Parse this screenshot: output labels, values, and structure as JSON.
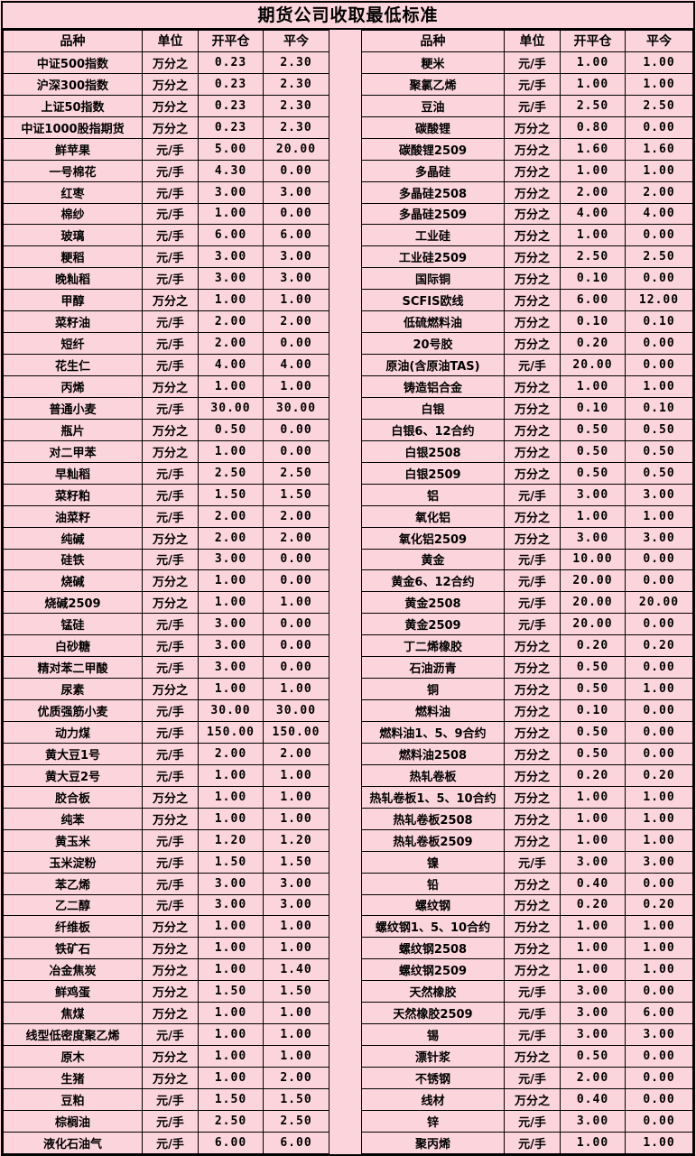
{
  "page": {
    "title": "期货公司收取最低标准",
    "background_color": "#fcd5dc",
    "border_color": "#000000",
    "text_color": "#000000"
  },
  "columns": [
    "品种",
    "单位",
    "开平仓",
    "平今"
  ],
  "tables": [
    {
      "name": "left",
      "rows": [
        [
          "中证500指数",
          "万分之",
          "0.23",
          "2.30"
        ],
        [
          "沪深300指数",
          "万分之",
          "0.23",
          "2.30"
        ],
        [
          "上证50指数",
          "万分之",
          "0.23",
          "2.30"
        ],
        [
          "中证1000股指期货",
          "万分之",
          "0.23",
          "2.30"
        ],
        [
          "鲜苹果",
          "元/手",
          "5.00",
          "20.00"
        ],
        [
          "一号棉花",
          "元/手",
          "4.30",
          "0.00"
        ],
        [
          "红枣",
          "元/手",
          "3.00",
          "3.00"
        ],
        [
          "棉纱",
          "元/手",
          "1.00",
          "0.00"
        ],
        [
          "玻璃",
          "元/手",
          "6.00",
          "6.00"
        ],
        [
          "粳稻",
          "元/手",
          "3.00",
          "3.00"
        ],
        [
          "晚籼稻",
          "元/手",
          "3.00",
          "3.00"
        ],
        [
          "甲醇",
          "万分之",
          "1.00",
          "1.00"
        ],
        [
          "菜籽油",
          "元/手",
          "2.00",
          "2.00"
        ],
        [
          "短纤",
          "元/手",
          "2.00",
          "0.00"
        ],
        [
          "花生仁",
          "元/手",
          "4.00",
          "4.00"
        ],
        [
          "丙烯",
          "万分之",
          "1.00",
          "1.00"
        ],
        [
          "普通小麦",
          "元/手",
          "30.00",
          "30.00"
        ],
        [
          "瓶片",
          "万分之",
          "0.50",
          "0.00"
        ],
        [
          "对二甲苯",
          "万分之",
          "1.00",
          "0.00"
        ],
        [
          "早籼稻",
          "元/手",
          "2.50",
          "2.50"
        ],
        [
          "菜籽粕",
          "元/手",
          "1.50",
          "1.50"
        ],
        [
          "油菜籽",
          "元/手",
          "2.00",
          "2.00"
        ],
        [
          "纯碱",
          "万分之",
          "2.00",
          "2.00"
        ],
        [
          "硅铁",
          "元/手",
          "3.00",
          "0.00"
        ],
        [
          "烧碱",
          "万分之",
          "1.00",
          "0.00"
        ],
        [
          "烧碱2509",
          "万分之",
          "1.00",
          "1.00"
        ],
        [
          "锰硅",
          "元/手",
          "3.00",
          "0.00"
        ],
        [
          "白砂糖",
          "元/手",
          "3.00",
          "0.00"
        ],
        [
          "精对苯二甲酸",
          "元/手",
          "3.00",
          "0.00"
        ],
        [
          "尿素",
          "万分之",
          "1.00",
          "1.00"
        ],
        [
          "优质强筋小麦",
          "元/手",
          "30.00",
          "30.00"
        ],
        [
          "动力煤",
          "元/手",
          "150.00",
          "150.00"
        ],
        [
          "黄大豆1号",
          "元/手",
          "2.00",
          "2.00"
        ],
        [
          "黄大豆2号",
          "元/手",
          "1.00",
          "1.00"
        ],
        [
          "胶合板",
          "万分之",
          "1.00",
          "1.00"
        ],
        [
          "纯苯",
          "万分之",
          "1.00",
          "1.00"
        ],
        [
          "黄玉米",
          "元/手",
          "1.20",
          "1.20"
        ],
        [
          "玉米淀粉",
          "元/手",
          "1.50",
          "1.50"
        ],
        [
          "苯乙烯",
          "元/手",
          "3.00",
          "3.00"
        ],
        [
          "乙二醇",
          "元/手",
          "3.00",
          "3.00"
        ],
        [
          "纤维板",
          "万分之",
          "1.00",
          "1.00"
        ],
        [
          "铁矿石",
          "万分之",
          "1.00",
          "1.00"
        ],
        [
          "冶金焦炭",
          "万分之",
          "1.00",
          "1.40"
        ],
        [
          "鲜鸡蛋",
          "万分之",
          "1.50",
          "1.50"
        ],
        [
          "焦煤",
          "万分之",
          "1.00",
          "1.00"
        ],
        [
          "线型低密度聚乙烯",
          "元/手",
          "1.00",
          "1.00"
        ],
        [
          "原木",
          "万分之",
          "1.00",
          "1.00"
        ],
        [
          "生猪",
          "万分之",
          "1.00",
          "2.00"
        ],
        [
          "豆粕",
          "元/手",
          "1.50",
          "1.50"
        ],
        [
          "棕榈油",
          "元/手",
          "2.50",
          "2.50"
        ],
        [
          "液化石油气",
          "元/手",
          "6.00",
          "6.00"
        ]
      ]
    },
    {
      "name": "right",
      "rows": [
        [
          "粳米",
          "元/手",
          "1.00",
          "1.00"
        ],
        [
          "聚氯乙烯",
          "元/手",
          "1.00",
          "1.00"
        ],
        [
          "豆油",
          "元/手",
          "2.50",
          "2.50"
        ],
        [
          "碳酸锂",
          "万分之",
          "0.80",
          "0.00"
        ],
        [
          "碳酸锂2509",
          "万分之",
          "1.60",
          "1.60"
        ],
        [
          "多晶硅",
          "万分之",
          "1.00",
          "1.00"
        ],
        [
          "多晶硅2508",
          "万分之",
          "2.00",
          "2.00"
        ],
        [
          "多晶硅2509",
          "万分之",
          "4.00",
          "4.00"
        ],
        [
          "工业硅",
          "万分之",
          "1.00",
          "0.00"
        ],
        [
          "工业硅2509",
          "万分之",
          "2.50",
          "2.50"
        ],
        [
          "国际铜",
          "万分之",
          "0.10",
          "0.00"
        ],
        [
          "SCFIS欧线",
          "万分之",
          "6.00",
          "12.00"
        ],
        [
          "低硫燃料油",
          "万分之",
          "0.10",
          "0.10"
        ],
        [
          "20号胶",
          "万分之",
          "0.20",
          "0.00"
        ],
        [
          "原油(含原油TAS)",
          "元/手",
          "20.00",
          "0.00"
        ],
        [
          "铸造铝合金",
          "万分之",
          "1.00",
          "1.00"
        ],
        [
          "白银",
          "万分之",
          "0.10",
          "0.10"
        ],
        [
          "白银6、12合约",
          "万分之",
          "0.50",
          "0.50"
        ],
        [
          "白银2508",
          "万分之",
          "0.50",
          "0.50"
        ],
        [
          "白银2509",
          "万分之",
          "0.50",
          "0.50"
        ],
        [
          "铝",
          "元/手",
          "3.00",
          "3.00"
        ],
        [
          "氧化铝",
          "万分之",
          "1.00",
          "1.00"
        ],
        [
          "氧化铝2509",
          "万分之",
          "3.00",
          "3.00"
        ],
        [
          "黄金",
          "元/手",
          "10.00",
          "0.00"
        ],
        [
          "黄金6、12合约",
          "元/手",
          "20.00",
          "0.00"
        ],
        [
          "黄金2508",
          "元/手",
          "20.00",
          "20.00"
        ],
        [
          "黄金2509",
          "元/手",
          "20.00",
          "0.00"
        ],
        [
          "丁二烯橡胶",
          "万分之",
          "0.20",
          "0.20"
        ],
        [
          "石油沥青",
          "万分之",
          "0.50",
          "0.00"
        ],
        [
          "铜",
          "万分之",
          "0.50",
          "1.00"
        ],
        [
          "燃料油",
          "万分之",
          "0.10",
          "0.00"
        ],
        [
          "燃料油1、5、9合约",
          "万分之",
          "0.50",
          "0.00"
        ],
        [
          "燃料油2508",
          "万分之",
          "0.50",
          "0.00"
        ],
        [
          "热轧卷板",
          "万分之",
          "0.20",
          "0.20"
        ],
        [
          "热轧卷板1、5、10合约",
          "万分之",
          "1.00",
          "1.00"
        ],
        [
          "热轧卷板2508",
          "万分之",
          "1.00",
          "1.00"
        ],
        [
          "热轧卷板2509",
          "万分之",
          "1.00",
          "1.00"
        ],
        [
          "镍",
          "元/手",
          "3.00",
          "3.00"
        ],
        [
          "铅",
          "万分之",
          "0.40",
          "0.00"
        ],
        [
          "螺纹钢",
          "万分之",
          "0.20",
          "0.20"
        ],
        [
          "螺纹钢1、5、10合约",
          "万分之",
          "1.00",
          "1.00"
        ],
        [
          "螺纹钢2508",
          "万分之",
          "1.00",
          "1.00"
        ],
        [
          "螺纹钢2509",
          "万分之",
          "1.00",
          "1.00"
        ],
        [
          "天然橡胶",
          "元/手",
          "3.00",
          "0.00"
        ],
        [
          "天然橡胶2509",
          "元/手",
          "3.00",
          "6.00"
        ],
        [
          "锡",
          "元/手",
          "3.00",
          "3.00"
        ],
        [
          "漂针浆",
          "万分之",
          "0.50",
          "0.00"
        ],
        [
          "不锈钢",
          "元/手",
          "2.00",
          "0.00"
        ],
        [
          "线材",
          "万分之",
          "0.40",
          "0.00"
        ],
        [
          "锌",
          "元/手",
          "3.00",
          "0.00"
        ],
        [
          "聚丙烯",
          "元/手",
          "1.00",
          "1.00"
        ]
      ]
    }
  ]
}
